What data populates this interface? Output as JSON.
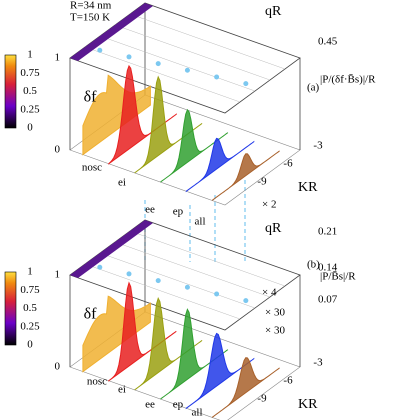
{
  "header": {
    "radius": "R=34 nm",
    "temperature": "T=150 K"
  },
  "panels": [
    {
      "tag": "(a)",
      "colorbar_ticks": [
        1,
        0.75,
        0.5,
        0.25,
        0
      ],
      "z_label": "δf",
      "z_ticks": [
        1,
        0
      ],
      "top_axis_label": "qR",
      "right_ticks": [
        0.45
      ],
      "right_label": "|P/(δf·B̄s)|/R",
      "scale_notes": [
        "× 2"
      ],
      "categories": [
        "nosc",
        "ei",
        "ee",
        "ep",
        "all"
      ],
      "k_label": "KR",
      "k_ticks": [
        -9,
        -6,
        -3
      ]
    },
    {
      "tag": "(b)",
      "colorbar_ticks": [
        1,
        0.75,
        0.5,
        0.25,
        0
      ],
      "z_label": "δf",
      "z_ticks": [
        1,
        0
      ],
      "top_axis_label": "qR",
      "right_ticks": [
        0.21,
        0.14,
        0.07
      ],
      "right_label": "|P/B̄s|/R",
      "scale_notes": [
        "× 4",
        "× 30",
        "× 30"
      ],
      "categories": [
        "nosc",
        "ei",
        "ee",
        "ep",
        "all"
      ],
      "k_label": "KR",
      "k_ticks": [
        -9,
        -6,
        -3
      ]
    }
  ]
}
